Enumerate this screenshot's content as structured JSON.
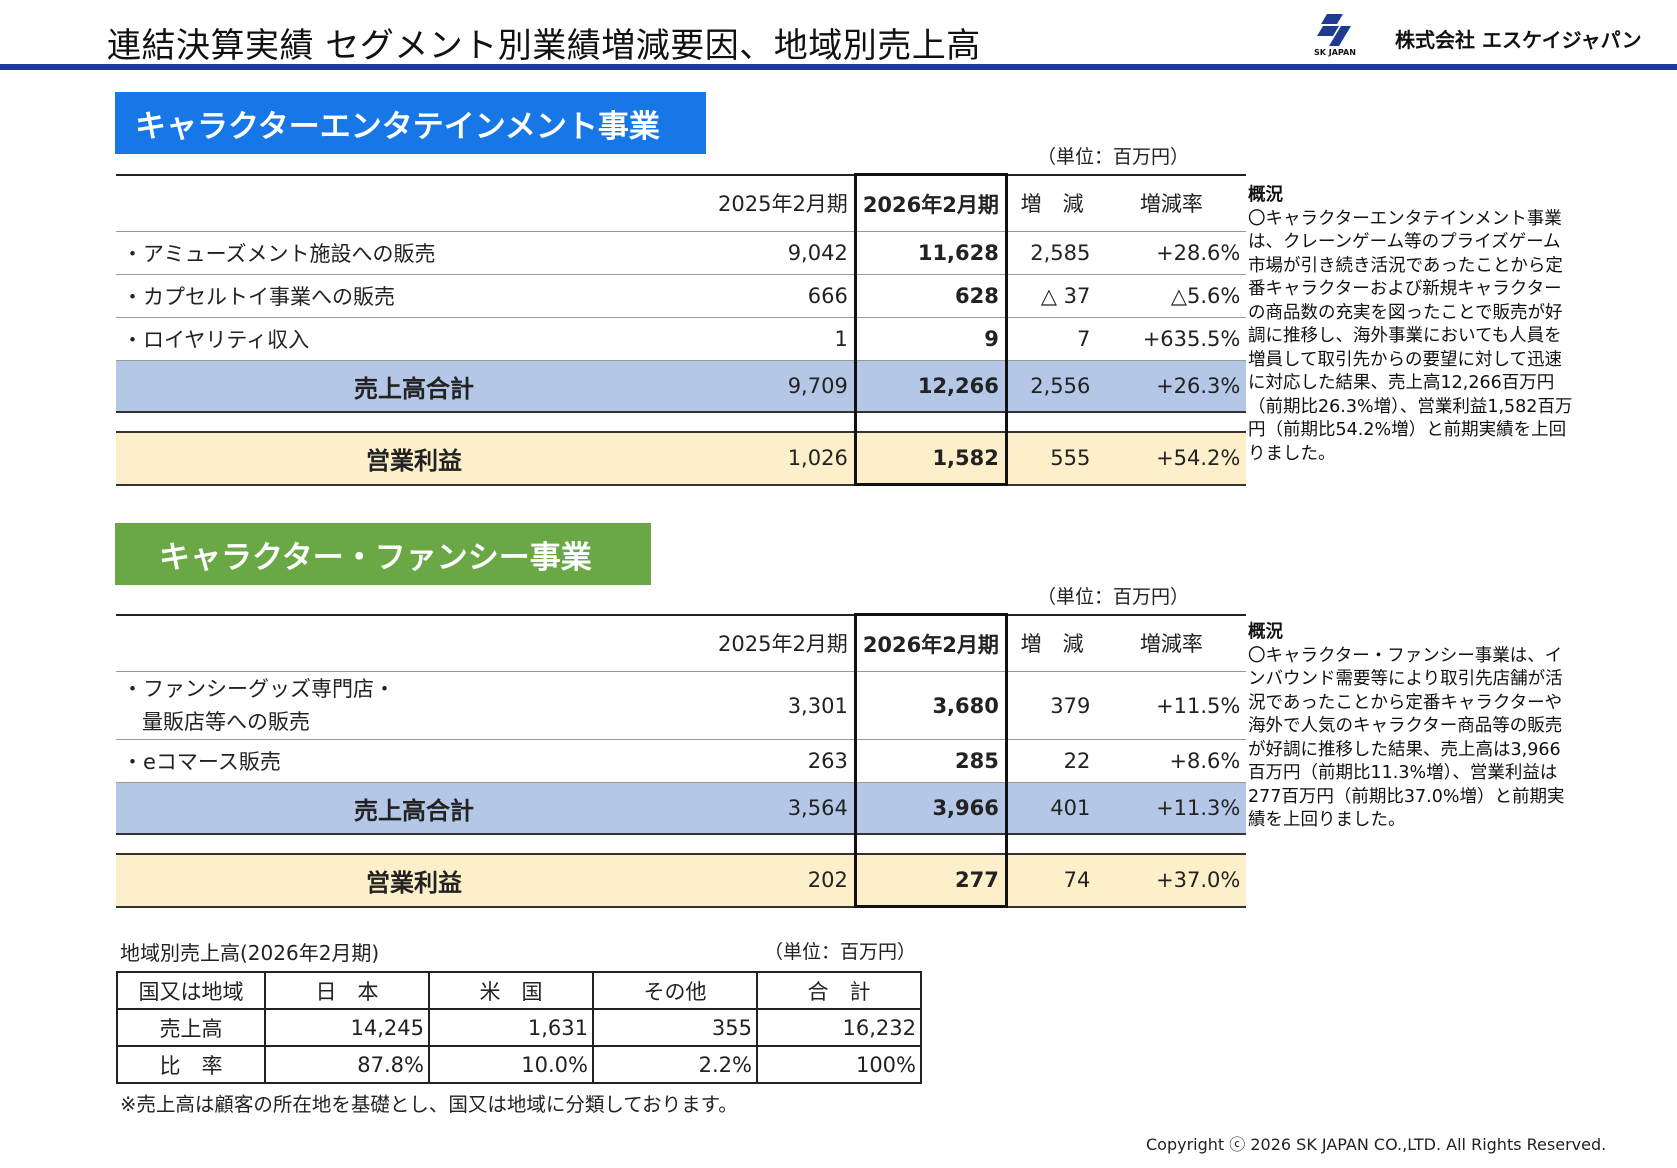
{
  "page": {
    "title": "連結決算実績 セグメント別業績増減要因、地域別売上高",
    "logo": {
      "mark_icon": "sk-japan-logo-icon",
      "mark_text": "SK JAPAN",
      "company": "株式会社 エスケイジャパン"
    },
    "copyright": "Copyright ⓒ 2026 SK JAPAN CO.,LTD. All Rights Reserved."
  },
  "segments": [
    {
      "name": "キャラクターエンタテインメント事業",
      "color": "#1877e6",
      "unit": "（単位：百万円）",
      "headers": [
        "2025年2月期",
        "2026年2月期",
        "増　減",
        "増減率"
      ],
      "rows": [
        {
          "label": "・アミューズメント施設への販売",
          "prev": "9,042",
          "curr": "11,628",
          "diff": "2,585",
          "rate": "+28.6%"
        },
        {
          "label": "・カプセルトイ事業への販売",
          "prev": "666",
          "curr": "628",
          "diff": "△ 37",
          "rate": "△5.6%"
        },
        {
          "label": "・ロイヤリティ収入",
          "prev": "1",
          "curr": "9",
          "diff": "7",
          "rate": "+635.5%"
        }
      ],
      "total": {
        "label": "売上高合計",
        "prev": "9,709",
        "curr": "12,266",
        "diff": "2,556",
        "rate": "+26.3%"
      },
      "operating": {
        "label": "営業利益",
        "prev": "1,026",
        "curr": "1,582",
        "diff": "555",
        "rate": "+54.2%"
      },
      "summary_heading": "概況",
      "summary": "〇キャラクターエンタテインメント事業は、クレーンゲーム等のプライズゲーム市場が引き続き活況であったことから定番キャラクターおよび新規キャラクターの商品数の充実を図ったことで販売が好調に推移し、海外事業においても人員を増員して取引先からの要望に対して迅速に対応した結果、売上高12,266百万円（前期比26.3%増）、営業利益1,582百万円（前期比54.2%増）と前期実績を上回りました。"
    },
    {
      "name": "キャラクター・ファンシー事業",
      "color": "#6aa846",
      "unit": "（単位：百万円）",
      "headers": [
        "2025年2月期",
        "2026年2月期",
        "増　減",
        "増減率"
      ],
      "rows": [
        {
          "label": "・ファンシーグッズ専門店・",
          "label2": "量販店等への販売",
          "prev": "3,301",
          "curr": "3,680",
          "diff": "379",
          "rate": "+11.5%"
        },
        {
          "label": "・eコマース販売",
          "prev": "263",
          "curr": "285",
          "diff": "22",
          "rate": "+8.6%"
        }
      ],
      "total": {
        "label": "売上高合計",
        "prev": "3,564",
        "curr": "3,966",
        "diff": "401",
        "rate": "+11.3%"
      },
      "operating": {
        "label": "営業利益",
        "prev": "202",
        "curr": "277",
        "diff": "74",
        "rate": "+37.0%"
      },
      "summary_heading": "概況",
      "summary": "〇キャラクター・ファンシー事業は、インバウンド需要等により取引先店舗が活況であったことから定番キャラクターや海外で人気のキャラクター商品等の販売が好調に推移した結果、売上高は3,966百万円（前期比11.3%増）、営業利益は277百万円（前期比37.0%増）と前期実績を上回りました。"
    }
  ],
  "region": {
    "title": "地域別売上高(2026年2月期)",
    "unit": "（単位：百万円）",
    "headers": [
      "国又は地域",
      "日　本",
      "米　国",
      "その他",
      "合　計"
    ],
    "rows": [
      [
        "売上高",
        "14,245",
        "1,631",
        "355",
        "16,232"
      ],
      [
        "比　率",
        "87.8%",
        "10.0%",
        "2.2%",
        "100%"
      ]
    ],
    "note": "※売上高は顧客の所在地を基礎とし、国又は地域に分類しております。"
  }
}
